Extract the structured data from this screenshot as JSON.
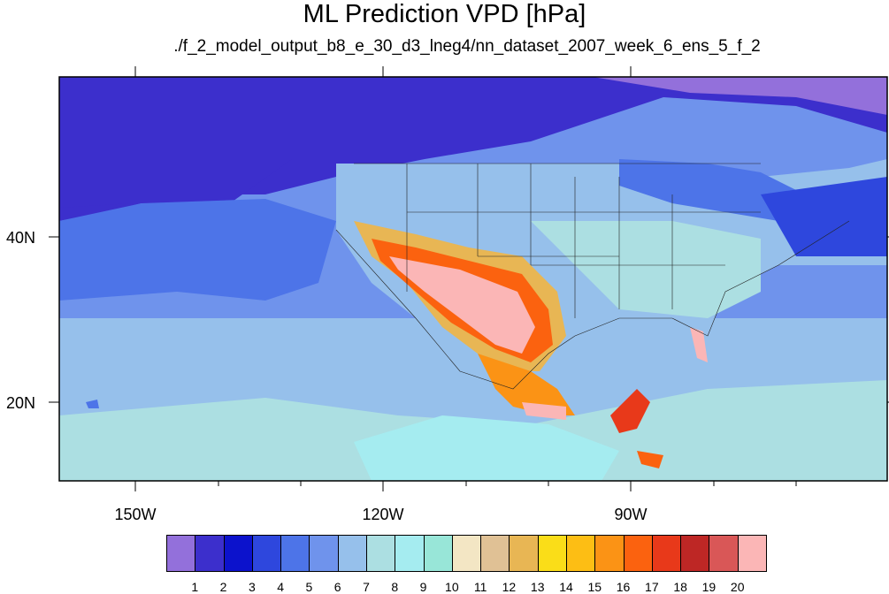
{
  "title": "ML Prediction VPD [hPa]",
  "subtitle": "./f_2_model_output_b8_e_30_d3_lneg4/nn_dataset_2007_week_6_ens_5_f_2",
  "axes": {
    "lon_labels": [
      "150W",
      "120W",
      "90W"
    ],
    "lat_labels": [
      "40N",
      "20N"
    ]
  },
  "colorbar": {
    "labels": [
      "1",
      "2",
      "3",
      "4",
      "5",
      "6",
      "7",
      "8",
      "9",
      "10",
      "11",
      "12",
      "13",
      "14",
      "15",
      "16",
      "17",
      "18",
      "19",
      "20"
    ],
    "colors": [
      "#9370db",
      "#3c2fcc",
      "#0c12cc",
      "#2e47dd",
      "#4d74e8",
      "#6f93ec",
      "#96c0eb",
      "#acdfe2",
      "#a5ecf0",
      "#98e6d8",
      "#f3e6c4",
      "#e0c195",
      "#e8b654",
      "#fadd18",
      "#fdbe14",
      "#fb9315",
      "#fb620f",
      "#e8391a",
      "#be2725",
      "#d95757",
      "#fbb6b6"
    ]
  },
  "colors": {
    "ocean_deep": "#3c2fcc",
    "ocean_mid": "#4d74e8",
    "ocean_light": "#96c0eb",
    "tropical": "#acdfe2",
    "arid_max": "#fbb6b6"
  }
}
